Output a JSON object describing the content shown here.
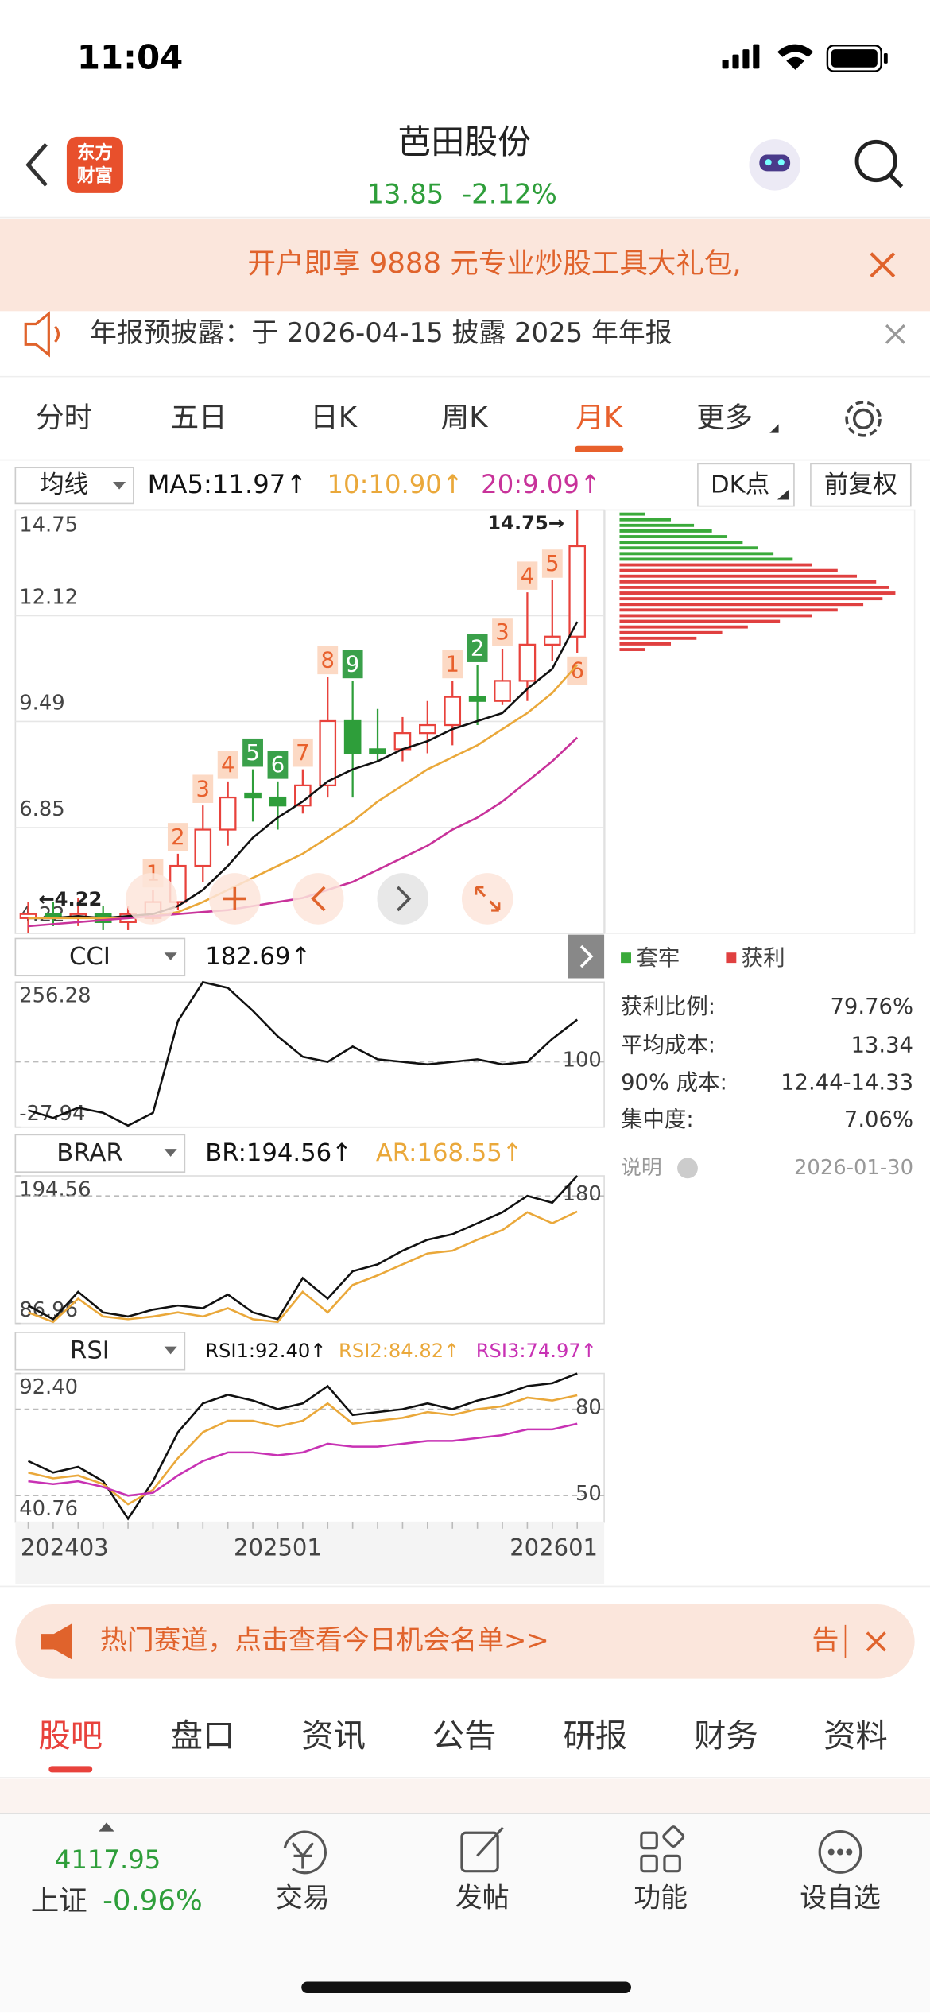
{
  "status": {
    "time": "11:04"
  },
  "header": {
    "logo": [
      "东方",
      "财富"
    ],
    "title": "芭田股份",
    "price": "13.85",
    "change": "-2.12%"
  },
  "banner": {
    "text": "开户即享 9888 元专业炒股工具大礼包,"
  },
  "notice": {
    "text": "年报预披露：于 2026-04-15 披露 2025 年年报"
  },
  "period_tabs": {
    "items": [
      "分时",
      "五日",
      "日K",
      "周K",
      "月K",
      "更多"
    ],
    "active": 4
  },
  "toolbar": {
    "ma_select": "均线",
    "dk": "DK点",
    "adjust": "前复权"
  },
  "chart_data": [
    {
      "type": "candlestick",
      "categories": [
        "202403",
        null,
        null,
        null,
        null,
        null,
        null,
        null,
        null,
        null,
        "202501",
        null,
        null,
        null,
        null,
        null,
        null,
        null,
        null,
        null,
        null,
        null,
        "202601"
      ],
      "open": [
        4.6,
        4.7,
        4.6,
        4.7,
        4.5,
        4.6,
        5.0,
        5.9,
        6.8,
        7.7,
        7.6,
        7.4,
        7.9,
        9.5,
        8.8,
        8.8,
        9.2,
        9.4,
        10.1,
        10.0,
        10.5,
        11.4,
        11.6
      ],
      "high": [
        5.0,
        5.0,
        5.1,
        4.9,
        4.9,
        5.3,
        6.2,
        7.4,
        8.0,
        8.3,
        8.0,
        8.3,
        10.6,
        10.5,
        9.8,
        9.6,
        10.0,
        10.5,
        10.9,
        11.3,
        12.7,
        13.0,
        14.75
      ],
      "low": [
        4.22,
        4.4,
        4.4,
        4.3,
        4.3,
        4.5,
        4.8,
        5.5,
        6.4,
        7.0,
        6.8,
        7.2,
        7.6,
        7.6,
        8.5,
        8.5,
        8.7,
        8.9,
        9.4,
        9.9,
        10.0,
        11.0,
        11.2
      ],
      "close": [
        4.7,
        4.6,
        4.7,
        4.5,
        4.7,
        5.0,
        5.9,
        6.8,
        7.6,
        7.6,
        7.4,
        7.9,
        9.5,
        8.7,
        8.7,
        9.2,
        9.4,
        10.1,
        10.0,
        10.5,
        11.4,
        11.6,
        13.85
      ],
      "td_labels": [
        null,
        null,
        null,
        null,
        null,
        "1",
        "2",
        "3",
        "4",
        "5",
        "6",
        "7",
        "8",
        "9",
        null,
        null,
        null,
        "1",
        "2",
        "3",
        "4",
        "5",
        "6"
      ],
      "series": [
        {
          "name": "MA5:11.97↑",
          "color": "#111111",
          "values": [
            4.6,
            4.6,
            4.65,
            4.6,
            4.65,
            4.7,
            4.9,
            5.3,
            5.9,
            6.6,
            7.1,
            7.5,
            8.0,
            8.3,
            8.5,
            8.8,
            9.0,
            9.3,
            9.5,
            9.7,
            10.3,
            10.8,
            11.97
          ]
        },
        {
          "name": "10:10.90↑",
          "color": "#eaa83a",
          "values": [
            4.6,
            4.6,
            4.6,
            4.6,
            4.6,
            4.65,
            4.75,
            5.0,
            5.3,
            5.6,
            5.9,
            6.2,
            6.6,
            7.0,
            7.5,
            7.9,
            8.3,
            8.6,
            8.9,
            9.3,
            9.7,
            10.2,
            10.9
          ]
        },
        {
          "name": "20:9.09↑",
          "color": "#c8329a",
          "values": [
            4.4,
            4.45,
            4.5,
            4.55,
            4.6,
            4.65,
            4.7,
            4.75,
            4.8,
            4.9,
            5.0,
            5.1,
            5.3,
            5.5,
            5.8,
            6.1,
            6.4,
            6.8,
            7.1,
            7.5,
            8.0,
            8.5,
            9.09
          ]
        }
      ],
      "ylim": [
        4.22,
        14.75
      ],
      "yticks": [
        14.75,
        12.12,
        9.49,
        6.85,
        4.22
      ],
      "max_label": "14.75→",
      "min_label": "←4.22",
      "up_color": "#e8423c",
      "down_color": "#2e9e3a",
      "grid": true
    },
    {
      "type": "line",
      "title": "CCI",
      "series": [
        {
          "name": "182.69↑",
          "color": "#111111",
          "values": [
            5,
            -10,
            10,
            0,
            -25,
            0,
            180,
            256.28,
            245,
            200,
            150,
            110,
            100,
            130,
            105,
            100,
            95,
            100,
            105,
            95,
            100,
            145,
            182.69
          ]
        }
      ],
      "ylim": [
        -27.94,
        256.28
      ],
      "yticks": [
        256.28,
        -27.94
      ],
      "levels": [
        100
      ]
    },
    {
      "type": "line",
      "title": "BRAR",
      "series": [
        {
          "name": "BR:194.56↑",
          "color": "#111111",
          "values": [
            100,
            90,
            110,
            95,
            92,
            97,
            100,
            98,
            108,
            95,
            90,
            120,
            105,
            125,
            130,
            140,
            148,
            152,
            160,
            168,
            180,
            175,
            194.56
          ]
        },
        {
          "name": "AR:168.55↑",
          "color": "#eaa83a",
          "values": [
            95,
            88,
            105,
            92,
            90,
            92,
            95,
            92,
            98,
            90,
            88,
            110,
            95,
            115,
            122,
            130,
            138,
            140,
            148,
            155,
            168,
            160,
            168.55
          ]
        }
      ],
      "ylim": [
        86.96,
        194.56
      ],
      "yticks": [
        194.56,
        86.96
      ],
      "levels": [
        180
      ]
    },
    {
      "type": "line",
      "title": "RSI",
      "series": [
        {
          "name": "RSI1:92.40↑",
          "color": "#111111",
          "values": [
            62,
            58,
            60,
            55,
            42,
            55,
            72,
            82,
            85,
            83,
            80,
            82,
            88,
            78,
            79,
            80,
            82,
            80,
            83,
            85,
            88,
            89,
            92.4
          ]
        },
        {
          "name": "RSI2:84.82↑",
          "color": "#eaa83a",
          "values": [
            58,
            56,
            57,
            54,
            47,
            52,
            63,
            72,
            76,
            76,
            74,
            76,
            82,
            75,
            76,
            77,
            79,
            78,
            80,
            81,
            84,
            83,
            84.82
          ]
        },
        {
          "name": "RSI3:74.97↑",
          "color": "#c832b4",
          "values": [
            55,
            54,
            55,
            53,
            50,
            51,
            57,
            62,
            65,
            65,
            64,
            65,
            68,
            67,
            67,
            68,
            69,
            69,
            70,
            71,
            73,
            73,
            74.97
          ]
        }
      ],
      "ylim": [
        40.76,
        92.4
      ],
      "yticks": [
        {
          "value": 92.4,
          "label": "92.40"
        },
        40.76
      ],
      "levels": [
        80,
        50
      ]
    }
  ],
  "chip_distribution": {
    "legend": [
      "套牢",
      "获利"
    ],
    "colors": [
      "#3aaa3a",
      "#e04040"
    ],
    "trapped": [
      20,
      40,
      58,
      72,
      84,
      96,
      108,
      120,
      135
    ],
    "profit": [
      150,
      170,
      185,
      200,
      210,
      215,
      205,
      190,
      170,
      150,
      125,
      100,
      80,
      60,
      40,
      20
    ],
    "stats": [
      {
        "label": "获利比例:",
        "value": "79.76%"
      },
      {
        "label": "平均成本:",
        "value": "13.34"
      },
      {
        "label": "90% 成本:",
        "value": "12.44-14.33"
      },
      {
        "label": "集中度:",
        "value": "7.06%"
      }
    ],
    "note": "说明",
    "date": "2026-01-30"
  },
  "promo": {
    "text": "热门赛道，点击查看今日机会名单>>",
    "tail": "告"
  },
  "bottom_tabs": {
    "items": [
      "股吧",
      "盘口",
      "资讯",
      "公告",
      "研报",
      "财务",
      "资料"
    ],
    "active": 0
  },
  "index_quote": {
    "value": "4117.95",
    "name": "上证",
    "change": "-0.96%"
  },
  "nav": [
    "交易",
    "发帖",
    "功能",
    "设自选"
  ]
}
